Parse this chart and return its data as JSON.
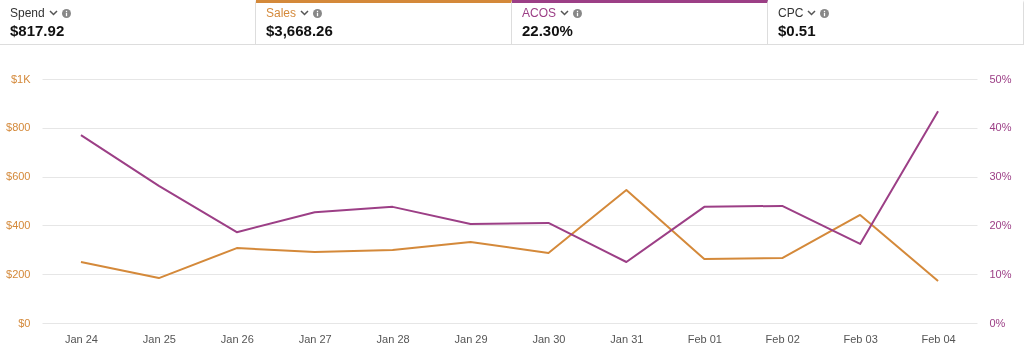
{
  "chart_data": {
    "type": "line",
    "categories": [
      "Jan 24",
      "Jan 25",
      "Jan 26",
      "Jan 27",
      "Jan 28",
      "Jan 29",
      "Jan 30",
      "Jan 31",
      "Feb 01",
      "Feb 02",
      "Feb 03",
      "Feb 04"
    ],
    "series": [
      {
        "name": "Sales",
        "color": "#d4893a",
        "values": [
          250,
          184,
          307,
          291,
          299,
          332,
          287,
          545,
          262,
          266,
          443,
          172
        ]
      },
      {
        "name": "ACOS",
        "color": "#9c3f86",
        "axis": "y2",
        "values": [
          38.5,
          28.1,
          18.6,
          22.7,
          23.8,
          20.3,
          20.5,
          12.5,
          23.8,
          24.0,
          16.2,
          43.4
        ]
      }
    ],
    "ylim": [
      0,
      1000
    ],
    "yticks": [
      {
        "value": 0,
        "label": "$0"
      },
      {
        "value": 200,
        "label": "$200"
      },
      {
        "value": 400,
        "label": "$400"
      },
      {
        "value": 600,
        "label": "$600"
      },
      {
        "value": 800,
        "label": "$800"
      },
      {
        "value": 1000,
        "label": "$1K"
      }
    ],
    "y2lim": [
      0,
      50
    ],
    "y2ticks": [
      {
        "value": 0,
        "label": "0%"
      },
      {
        "value": 10,
        "label": "10%"
      },
      {
        "value": 20,
        "label": "20%"
      },
      {
        "value": 30,
        "label": "30%"
      },
      {
        "value": 40,
        "label": "40%"
      },
      {
        "value": 50,
        "label": "50%"
      }
    ],
    "grid": "y",
    "legend": "top",
    "marker": "none",
    "line_style": "solid",
    "annotations": [
      "Spend",
      "$817.92",
      "$3,668.26",
      "22.30%",
      "CPC",
      "$0.51"
    ]
  }
}
